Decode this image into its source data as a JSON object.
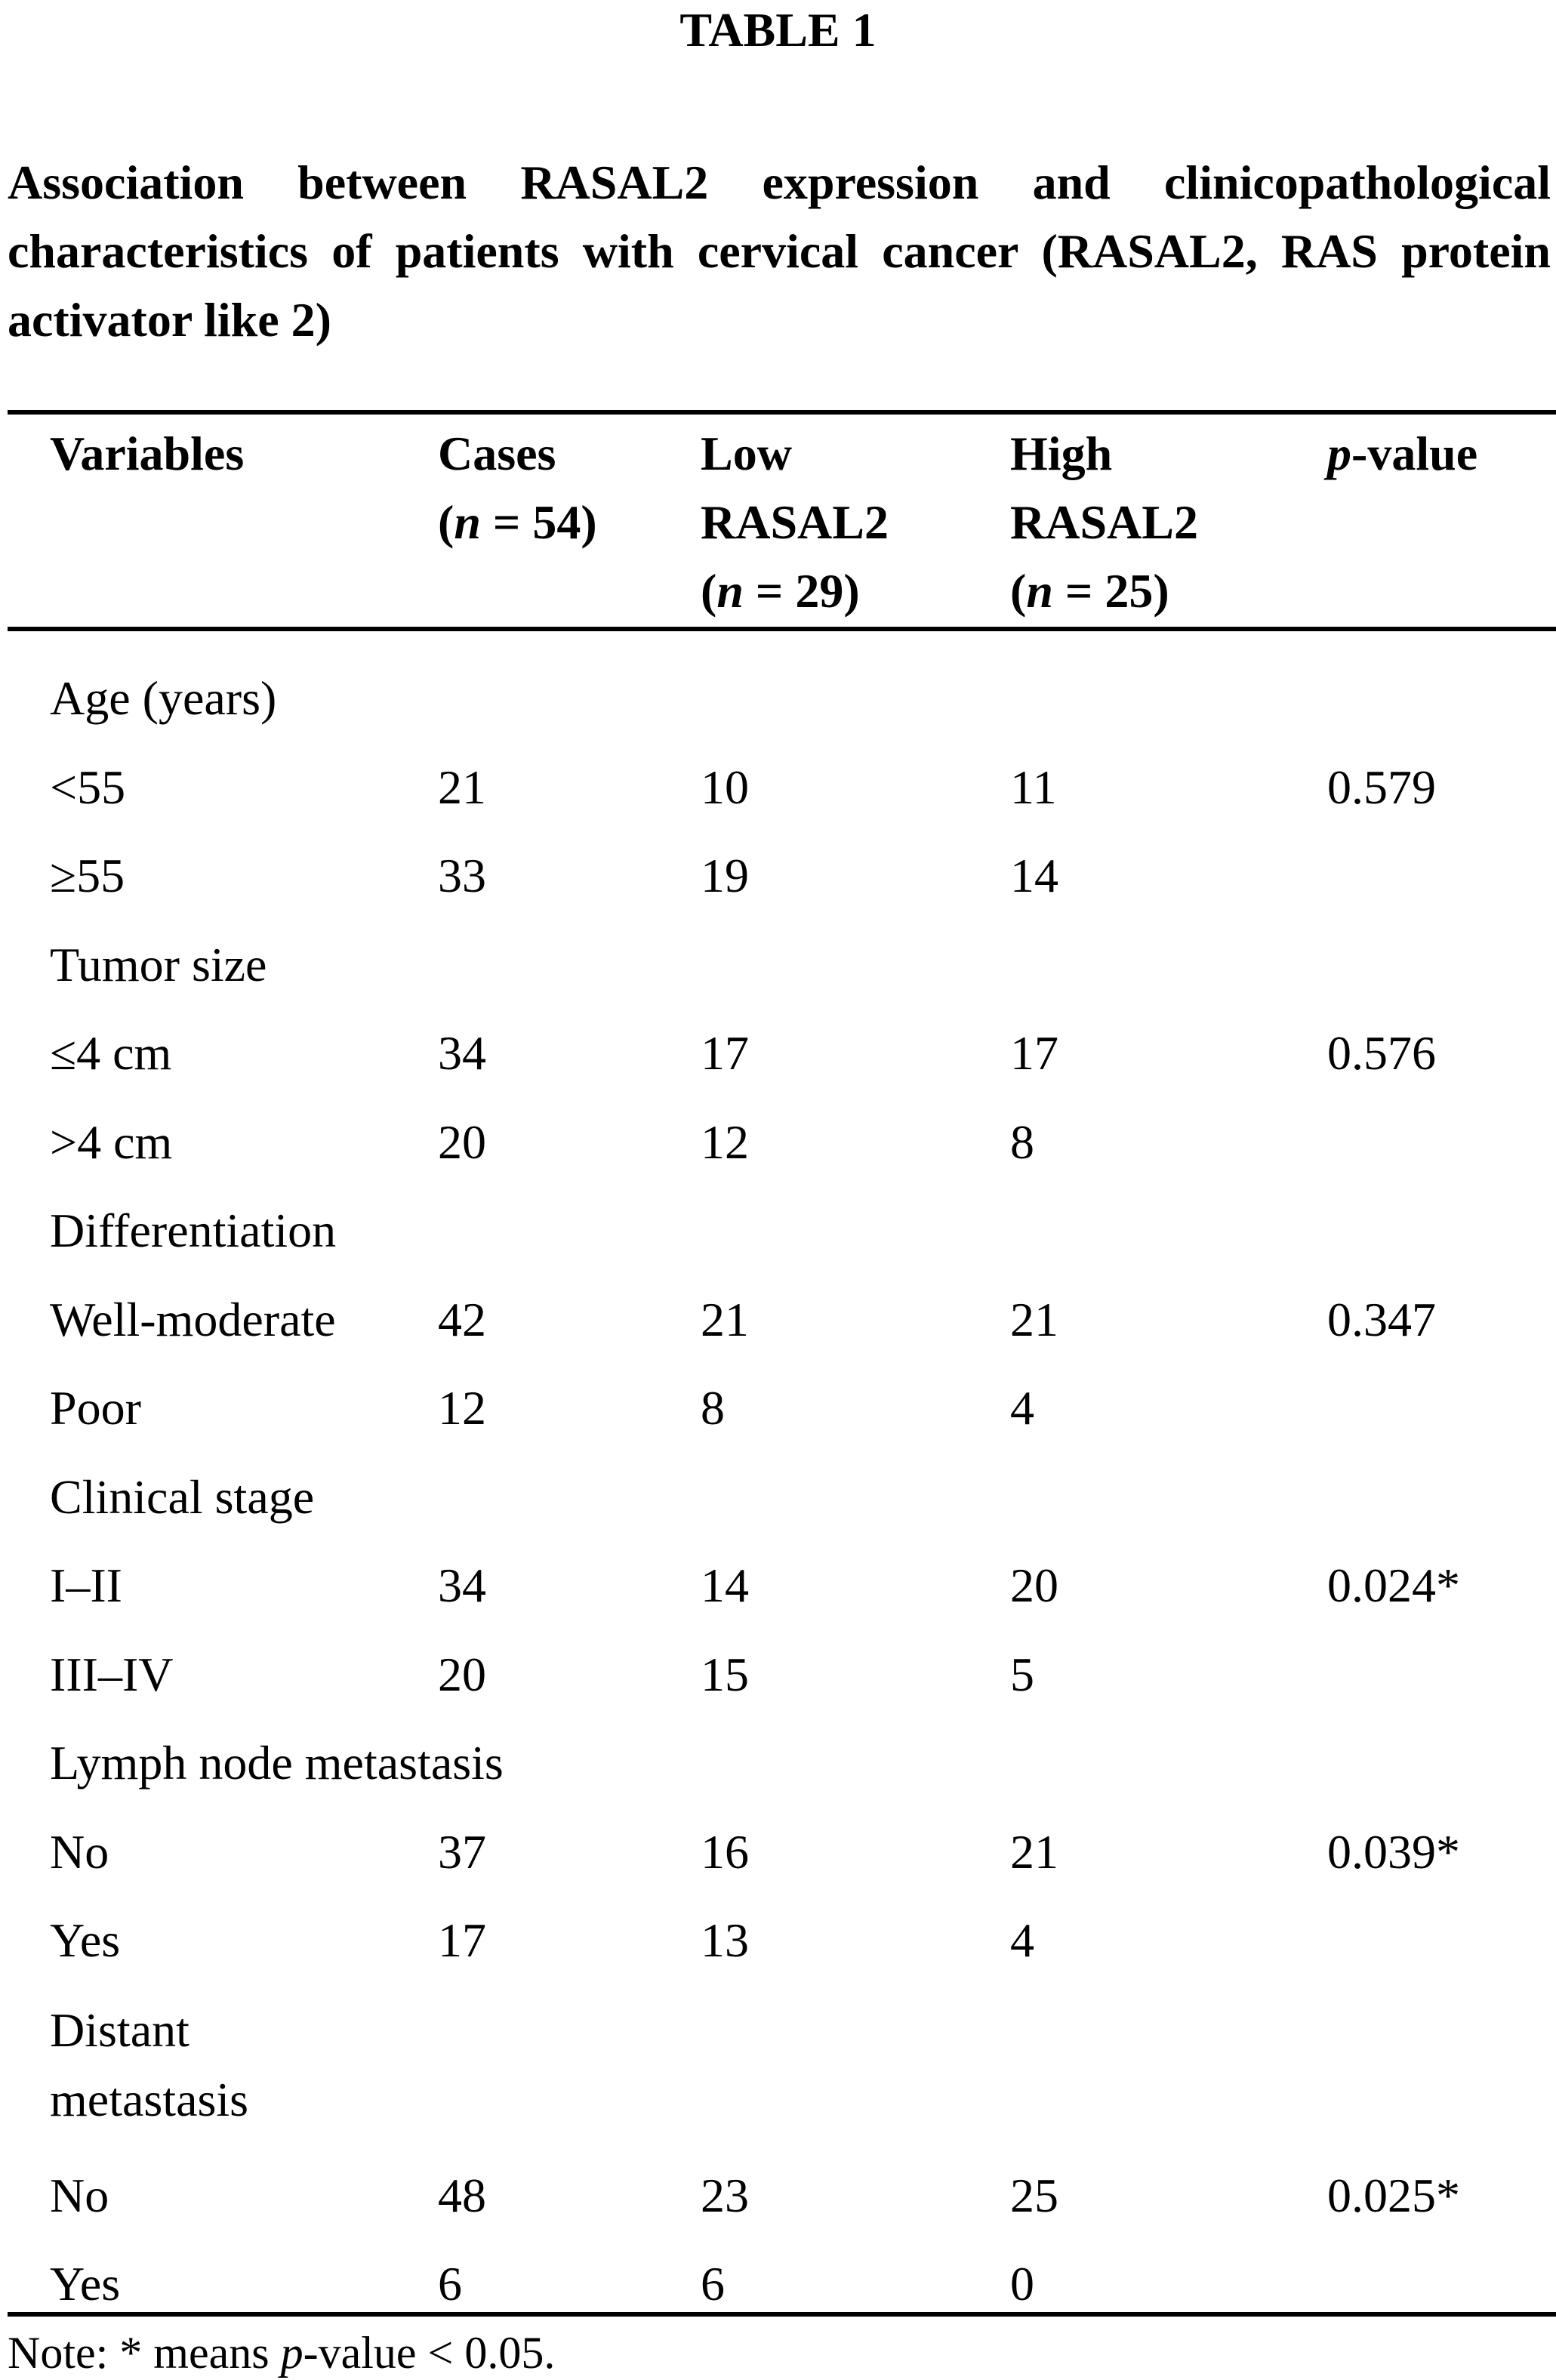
{
  "title": "TABLE 1",
  "caption": "Association between RASAL2 expression and clinicopathological characteristics of patients with cervical cancer (RASAL2, RAS protein activator like 2)",
  "headers": {
    "variables": "Variables",
    "cases": "Cases",
    "cases_n": "54",
    "low": "Low",
    "low_sub": "RASAL2",
    "low_n": "29",
    "high": "High",
    "high_sub": "RASAL2",
    "high_n": "25",
    "p_italic": "p",
    "p_rest": "-value",
    "n_symbol": "n"
  },
  "rows": [
    {
      "label": "Age (years)",
      "cases": "",
      "low": "",
      "high": "",
      "p": ""
    },
    {
      "label": "<55",
      "cases": "21",
      "low": "10",
      "high": "11",
      "p": "0.579"
    },
    {
      "label": "≥55",
      "cases": "33",
      "low": "19",
      "high": "14",
      "p": ""
    },
    {
      "label": "Tumor size",
      "cases": "",
      "low": "",
      "high": "",
      "p": ""
    },
    {
      "label": "≤4 cm",
      "cases": "34",
      "low": "17",
      "high": "17",
      "p": "0.576"
    },
    {
      "label": ">4 cm",
      "cases": "20",
      "low": "12",
      "high": "8",
      "p": ""
    },
    {
      "label": "Differentiation",
      "cases": "",
      "low": "",
      "high": "",
      "p": ""
    },
    {
      "label": "Well-moderate",
      "cases": "42",
      "low": "21",
      "high": "21",
      "p": "0.347"
    },
    {
      "label": "Poor",
      "cases": "12",
      "low": "8",
      "high": "4",
      "p": ""
    },
    {
      "label": "Clinical stage",
      "cases": "",
      "low": "",
      "high": "",
      "p": ""
    },
    {
      "label": "I–II",
      "cases": "34",
      "low": "14",
      "high": "20",
      "p": "0.024*"
    },
    {
      "label": "III–IV",
      "cases": "20",
      "low": "15",
      "high": "5",
      "p": ""
    },
    {
      "label": "Lymph node metastasis",
      "cases": "",
      "low": "",
      "high": "",
      "p": ""
    },
    {
      "label": "No",
      "cases": "37",
      "low": "16",
      "high": "21",
      "p": "0.039*"
    },
    {
      "label": "Yes",
      "cases": "17",
      "low": "13",
      "high": "4",
      "p": ""
    },
    {
      "label": "Distant metastasis",
      "cases": "",
      "low": "",
      "high": "",
      "p": "",
      "wrap": true
    },
    {
      "label": "No",
      "cases": "48",
      "low": "23",
      "high": "25",
      "p": "0.025*"
    },
    {
      "label": "Yes",
      "cases": "6",
      "low": "6",
      "high": "0",
      "p": ""
    }
  ],
  "note": {
    "prefix": "Note: * means ",
    "p_italic": "p",
    "suffix": "-value < 0.05."
  }
}
